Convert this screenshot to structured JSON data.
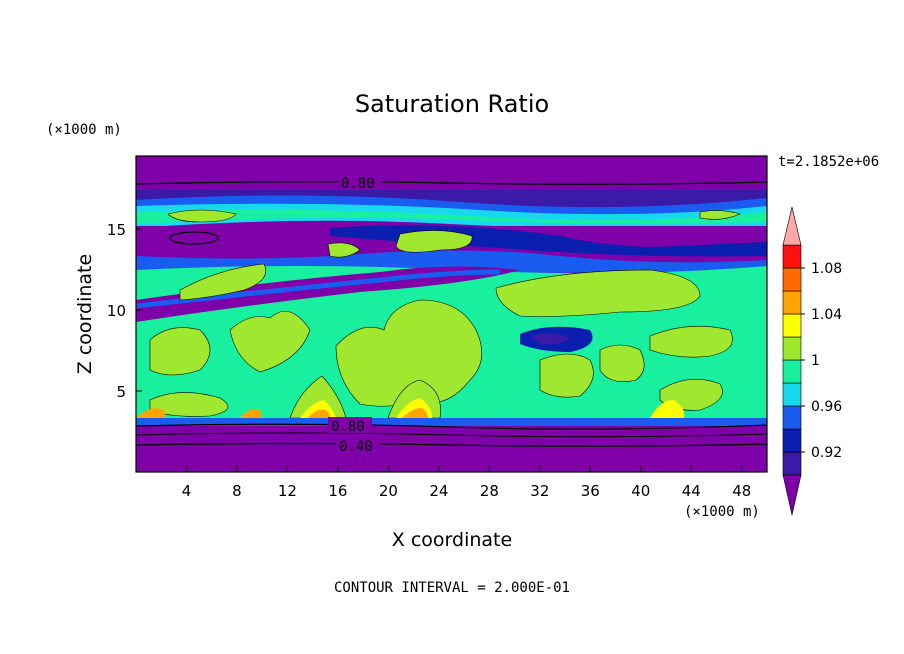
{
  "chart_data": {
    "type": "heatmap",
    "title": "Saturation Ratio",
    "xlabel": "X coordinate",
    "ylabel": "Z coordinate",
    "x_unit": "(×1000 m)",
    "y_unit": "(×1000 m)",
    "xlim": [
      0,
      50
    ],
    "ylim": [
      0,
      19.5
    ],
    "x_ticks": [
      4,
      8,
      12,
      16,
      20,
      24,
      28,
      32,
      36,
      40,
      44,
      48
    ],
    "y_ticks": [
      5,
      10,
      15
    ],
    "time_label": "t=2.1852e+06",
    "footer": "CONTOUR INTERVAL = 2.000E-01",
    "contour_labels": [
      "0.80",
      "0.80",
      "0.40"
    ],
    "colorbar": {
      "ticks": [
        "1.08",
        "1.04",
        "1",
        "0.96",
        "0.92"
      ],
      "levels": [
        {
          "range": "< 0.90",
          "color": "#7f00a8"
        },
        {
          "range": "0.90–0.92",
          "color": "#3b1aa8"
        },
        {
          "range": "0.92–0.94",
          "color": "#0a1eb0"
        },
        {
          "range": "0.94–0.96",
          "color": "#1a5cf0"
        },
        {
          "range": "0.96–0.98",
          "color": "#18d8f0"
        },
        {
          "range": "0.98–1.00",
          "color": "#18f0a0"
        },
        {
          "range": "1.00–1.02",
          "color": "#a0e830"
        },
        {
          "range": "1.02–1.04",
          "color": "#ffff00"
        },
        {
          "range": "1.04–1.06",
          "color": "#ffa400"
        },
        {
          "range": "1.06–1.08",
          "color": "#ff6a00"
        },
        {
          "range": "1.08–1.10",
          "color": "#ff1010"
        },
        {
          "range": "> 1.10",
          "color": "#ffa8a8"
        }
      ]
    }
  }
}
